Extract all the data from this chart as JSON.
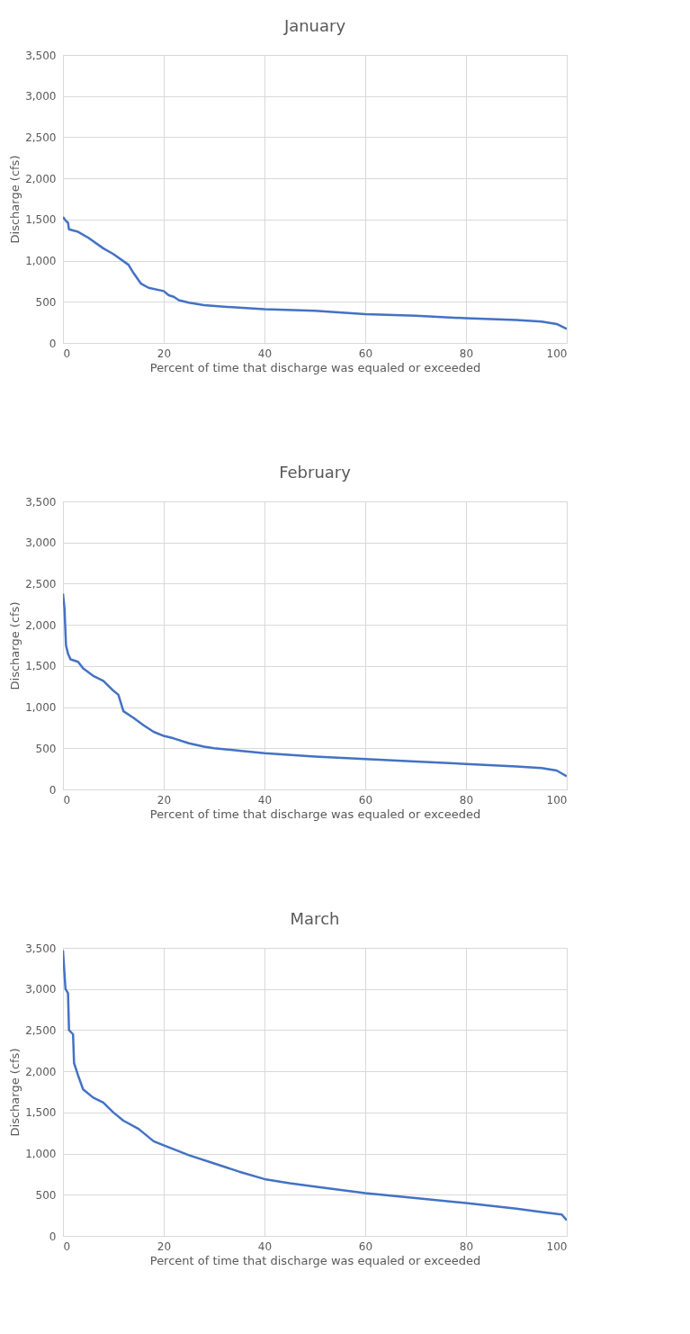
{
  "chart_data": [
    {
      "type": "line",
      "title": "January",
      "xlabel": "Percent of time that discharge was equaled or exceeded",
      "ylabel": "Discharge (cfs)",
      "series": [
        {
          "color": "#4472c4",
          "x": [
            0,
            0.5,
            1,
            1.2,
            3,
            5,
            8,
            10,
            13,
            14,
            15.5,
            17,
            20,
            21,
            22,
            23,
            25,
            28,
            32,
            40,
            50,
            60,
            70,
            80,
            90,
            95,
            98,
            100
          ],
          "values": [
            1530,
            1490,
            1460,
            1380,
            1350,
            1280,
            1150,
            1080,
            950,
            850,
            720,
            670,
            630,
            580,
            560,
            520,
            490,
            460,
            440,
            410,
            390,
            350,
            330,
            300,
            280,
            260,
            230,
            170
          ]
        }
      ],
      "xlim": [
        0,
        100
      ],
      "xticks": [
        0,
        20,
        40,
        60,
        80,
        100
      ],
      "ylim": [
        0,
        3500
      ],
      "yticks": [
        {
          "value": 0,
          "label": "0"
        },
        {
          "value": 500,
          "label": "500"
        },
        {
          "value": 1000,
          "label": "1,000"
        },
        {
          "value": 1500,
          "label": "1,500"
        },
        {
          "value": 2000,
          "label": "2,000"
        },
        {
          "value": 2500,
          "label": "2,500"
        },
        {
          "value": 3000,
          "label": "3,000"
        },
        {
          "value": 3500,
          "label": "3,500"
        }
      ],
      "grid": true
    },
    {
      "type": "line",
      "title": "February",
      "xlabel": "Percent of time that discharge was equaled or exceeded",
      "ylabel": "Discharge (cfs)",
      "series": [
        {
          "color": "#4472c4",
          "x": [
            0,
            0.3,
            0.6,
            1,
            1.5,
            3,
            4,
            6,
            8,
            10,
            11,
            12,
            14,
            16,
            18,
            20,
            22,
            25,
            28,
            30,
            35,
            40,
            50,
            60,
            70,
            80,
            90,
            95,
            98,
            100
          ],
          "values": [
            2380,
            2200,
            1750,
            1650,
            1580,
            1550,
            1470,
            1380,
            1320,
            1200,
            1150,
            950,
            870,
            780,
            700,
            650,
            620,
            560,
            520,
            500,
            470,
            440,
            400,
            370,
            340,
            310,
            280,
            260,
            230,
            160
          ]
        }
      ],
      "xlim": [
        0,
        100
      ],
      "xticks": [
        0,
        20,
        40,
        60,
        80,
        100
      ],
      "ylim": [
        0,
        3500
      ],
      "yticks": [
        {
          "value": 0,
          "label": "0"
        },
        {
          "value": 500,
          "label": "500"
        },
        {
          "value": 1000,
          "label": "1,000"
        },
        {
          "value": 1500,
          "label": "1,500"
        },
        {
          "value": 2000,
          "label": "2,000"
        },
        {
          "value": 2500,
          "label": "2,500"
        },
        {
          "value": 3000,
          "label": "3,000"
        },
        {
          "value": 3500,
          "label": "3,500"
        }
      ],
      "grid": true
    },
    {
      "type": "line",
      "title": "March",
      "xlabel": "Percent of time that discharge was equaled or exceeded",
      "ylabel": "Discharge (cfs)",
      "series": [
        {
          "color": "#4472c4",
          "x": [
            0,
            0.5,
            1,
            1.2,
            2,
            2.2,
            3,
            4,
            6,
            8,
            10,
            12,
            15,
            18,
            20,
            25,
            30,
            35,
            40,
            45,
            50,
            60,
            70,
            80,
            90,
            95,
            99,
            100
          ],
          "values": [
            3470,
            3000,
            2950,
            2500,
            2450,
            2100,
            1950,
            1780,
            1680,
            1620,
            1500,
            1400,
            1300,
            1150,
            1100,
            980,
            880,
            780,
            690,
            640,
            600,
            520,
            460,
            400,
            330,
            290,
            260,
            190
          ]
        }
      ],
      "xlim": [
        0,
        100
      ],
      "xticks": [
        0,
        20,
        40,
        60,
        80,
        100
      ],
      "ylim": [
        0,
        3500
      ],
      "yticks": [
        {
          "value": 0,
          "label": "0"
        },
        {
          "value": 500,
          "label": "500"
        },
        {
          "value": 1000,
          "label": "1,000"
        },
        {
          "value": 1500,
          "label": "1,500"
        },
        {
          "value": 2000,
          "label": "2,000"
        },
        {
          "value": 2500,
          "label": "2,500"
        },
        {
          "value": 3000,
          "label": "3,000"
        },
        {
          "value": 3500,
          "label": "3,500"
        }
      ],
      "grid": true
    }
  ]
}
